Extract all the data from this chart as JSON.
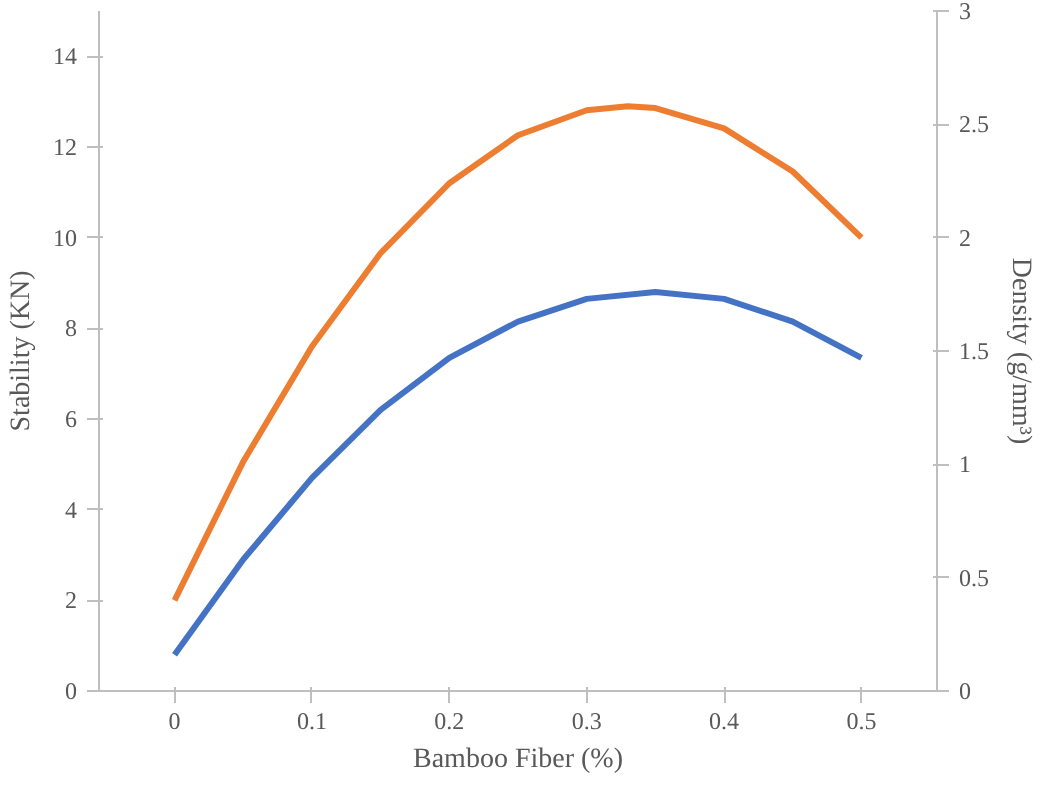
{
  "chart_data": {
    "type": "line",
    "xlabel": "Bamboo Fiber (%)",
    "ylabel": "Stability (KN)",
    "y2label": "Density (g/mm³)",
    "xlim": [
      -0.055,
      0.555
    ],
    "xticks": [
      0,
      0.1,
      0.2,
      0.3,
      0.4,
      0.5
    ],
    "ylim": [
      0,
      15
    ],
    "yticks": [
      0,
      2,
      4,
      6,
      8,
      10,
      12,
      14
    ],
    "y2lim": [
      0,
      3
    ],
    "y2ticks": [
      0,
      0.5,
      1,
      1.5,
      2,
      2.5,
      3
    ],
    "grid": false,
    "line_style": "solid",
    "series": [
      {
        "color": "#ed7d31",
        "x": [
          0,
          0.05,
          0.1,
          0.15,
          0.2,
          0.25,
          0.3,
          0.33,
          0.35,
          0.4,
          0.45,
          0.5
        ],
        "values": [
          2,
          5.06,
          7.6,
          9.66,
          11.2,
          12.26,
          12.81,
          12.9,
          12.86,
          12.41,
          11.46,
          10.0
        ]
      },
      {
        "color": "#4472c4",
        "axis": "y2",
        "x": [
          0,
          0.05,
          0.1,
          0.15,
          0.2,
          0.25,
          0.3,
          0.35,
          0.4,
          0.45,
          0.5
        ],
        "values": [
          0.16,
          0.58,
          0.94,
          1.24,
          1.47,
          1.63,
          1.73,
          1.76,
          1.73,
          1.63,
          1.47
        ]
      }
    ]
  }
}
